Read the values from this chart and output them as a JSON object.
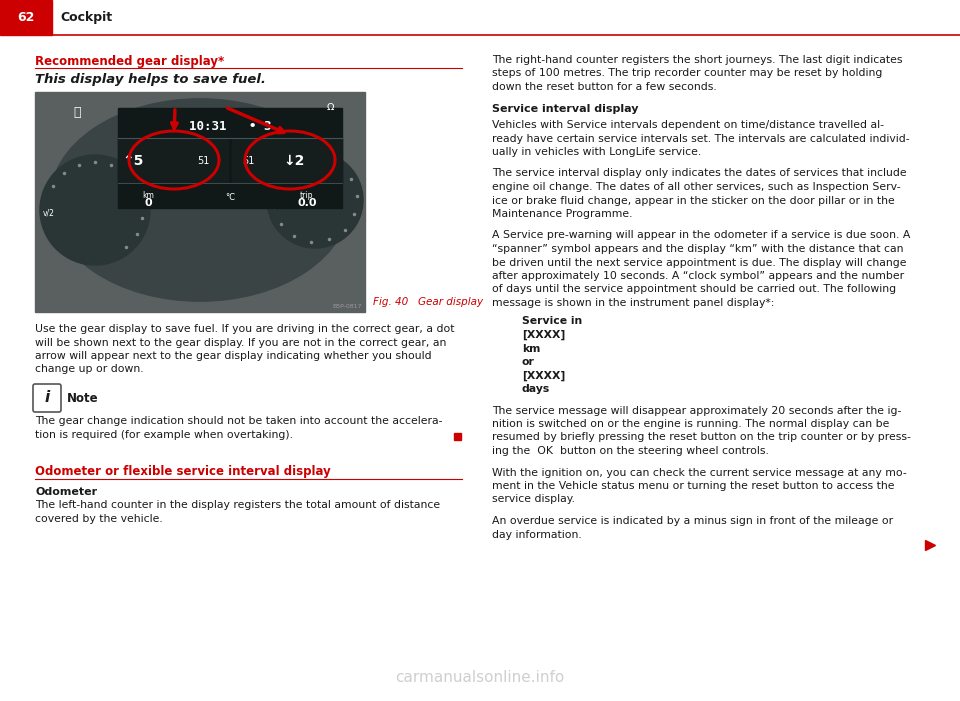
{
  "page_bg": "#ffffff",
  "header_red": "#cc0000",
  "header_text": "Cockpit",
  "page_number": "62",
  "section1_title": "Recommended gear display*",
  "section1_subtitle": "This display helps to save fuel.",
  "fig_caption": "Fig. 40   Gear display",
  "body_text1_lines": [
    "Use the gear display to save fuel. If you are driving in the correct gear, a dot",
    "will be shown next to the gear display. If you are not in the correct gear, an",
    "arrow will appear next to the gear display indicating whether you should",
    "change up or down."
  ],
  "note_title": "Note",
  "note_body_lines": [
    "The gear change indication should not be taken into account the accelera-",
    "tion is required (for example when overtaking)."
  ],
  "section2_title": "Odometer or flexible service interval display",
  "odometer_title": "Odometer",
  "odometer_body_lines": [
    "The left-hand counter in the display registers the total amount of distance",
    "covered by the vehicle."
  ],
  "right_intro_lines": [
    "The right-hand counter registers the short journeys. The last digit indicates",
    "steps of 100 metres. The trip recorder counter may be reset by holding",
    "down the reset button for a few seconds."
  ],
  "service_interval_title": "Service interval display",
  "si_body1_lines": [
    "Vehicles with Service intervals dependent on time/distance travelled al-",
    "ready have certain service intervals set. The intervals are calculated individ-",
    "ually in vehicles with LongLife service."
  ],
  "si_body2_lines": [
    "The service interval display only indicates the dates of services that include",
    "engine oil change. The dates of all other services, such as Inspection Serv-",
    "ice or brake fluid change, appear in the sticker on the door pillar or in the",
    "Maintenance Programme."
  ],
  "spw_lines": [
    "A Service pre-warning will appear in the odometer if a service is due soon. A",
    "“spanner” symbol appears and the display “km” with the distance that can",
    "be driven until the next service appointment is due. The display will change",
    "after approximately 10 seconds. A “clock symbol” appears and the number",
    "of days until the service appointment should be carried out. The following",
    "message is shown in the instrument panel display*:"
  ],
  "service_message_lines": [
    "Service in",
    "[XXXX]",
    "km",
    "or",
    "[XXXX]",
    "days"
  ],
  "sb3_lines": [
    "The service message will disappear approximately 20 seconds after the ig-",
    "nition is switched on or the engine is running. The normal display can be",
    "resumed by briefly pressing the reset button on the trip counter or by press-",
    "ing the  OK  button on the steering wheel controls."
  ],
  "sb4_lines": [
    "With the ignition on, you can check the current service message at any mo-",
    "ment in the Vehicle status menu or turning the reset button to access the",
    "service display."
  ],
  "sb5_lines": [
    "An overdue service is indicated by a minus sign in front of the mileage or",
    "day information."
  ],
  "watermark": "carmanualsonline.info",
  "red_color": "#cc0000",
  "text_color": "#1a1a1a"
}
